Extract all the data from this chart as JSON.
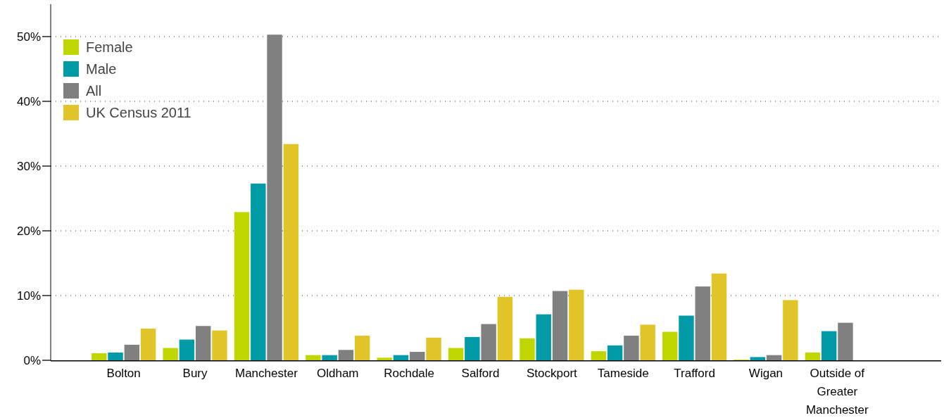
{
  "chart_data": {
    "type": "bar",
    "categories": [
      "Bolton",
      "Bury",
      "Manchester",
      "Oldham",
      "Rochdale",
      "Salford",
      "Stockport",
      "Tameside",
      "Trafford",
      "Wigan",
      "Outside of Greater Manchester"
    ],
    "series": [
      {
        "name": "Female",
        "color": "#c0d600",
        "values": [
          1.1,
          1.9,
          22.9,
          0.8,
          0.4,
          1.9,
          3.4,
          1.4,
          4.4,
          0.1,
          1.2
        ]
      },
      {
        "name": "Male",
        "color": "#009ba6",
        "values": [
          1.2,
          3.2,
          27.3,
          0.8,
          0.8,
          3.6,
          7.1,
          2.3,
          6.9,
          0.5,
          4.5
        ]
      },
      {
        "name": "All",
        "color": "#808080",
        "values": [
          2.4,
          5.3,
          50.3,
          1.6,
          1.3,
          5.6,
          10.7,
          3.8,
          11.4,
          0.8,
          5.8
        ]
      },
      {
        "name": "UK Census 2011",
        "color": "#e0c428",
        "values": [
          4.9,
          4.6,
          33.4,
          3.8,
          3.5,
          9.8,
          10.9,
          5.5,
          13.4,
          9.3,
          null
        ]
      }
    ],
    "ylim": [
      0,
      55
    ],
    "yticks": [
      {
        "value": 0,
        "label": "0%"
      },
      {
        "value": 10,
        "label": "10%"
      },
      {
        "value": 20,
        "label": "20%"
      },
      {
        "value": 30,
        "label": "30%"
      },
      {
        "value": 40,
        "label": "40%"
      },
      {
        "value": 50,
        "label": "50%"
      }
    ],
    "grid": "y",
    "legend": "top left"
  }
}
